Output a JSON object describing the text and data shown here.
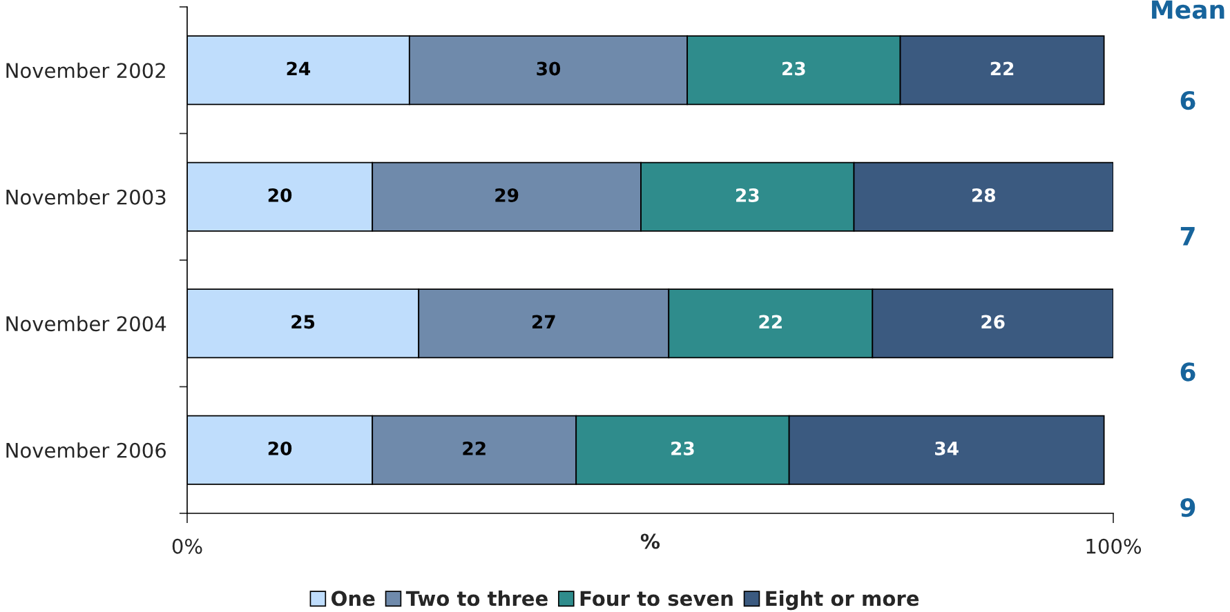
{
  "chart_data": {
    "type": "bar",
    "orientation": "horizontal",
    "stacked": true,
    "categories": [
      "November 2002",
      "November 2003",
      "November 2004",
      "November 2006"
    ],
    "series": [
      {
        "name": "One",
        "color": "#bfddfc",
        "values": [
          24,
          20,
          25,
          20
        ]
      },
      {
        "name": "Two to three",
        "color": "#6f8aab",
        "values": [
          30,
          29,
          27,
          22
        ]
      },
      {
        "name": "Four to seven",
        "color": "#2f8c8c",
        "values": [
          23,
          23,
          22,
          23
        ]
      },
      {
        "name": "Eight or more",
        "color": "#3b5a80",
        "values": [
          22,
          28,
          26,
          34
        ]
      }
    ],
    "xlim": [
      0,
      100
    ],
    "xticks": [
      {
        "value": 0,
        "label": "0%"
      },
      {
        "value": 100,
        "label": "100%"
      }
    ],
    "xlabel": "%",
    "data_labels": true,
    "legend": "bottom",
    "annotations": [
      "Mean",
      "6",
      "7",
      "6",
      "9"
    ]
  }
}
